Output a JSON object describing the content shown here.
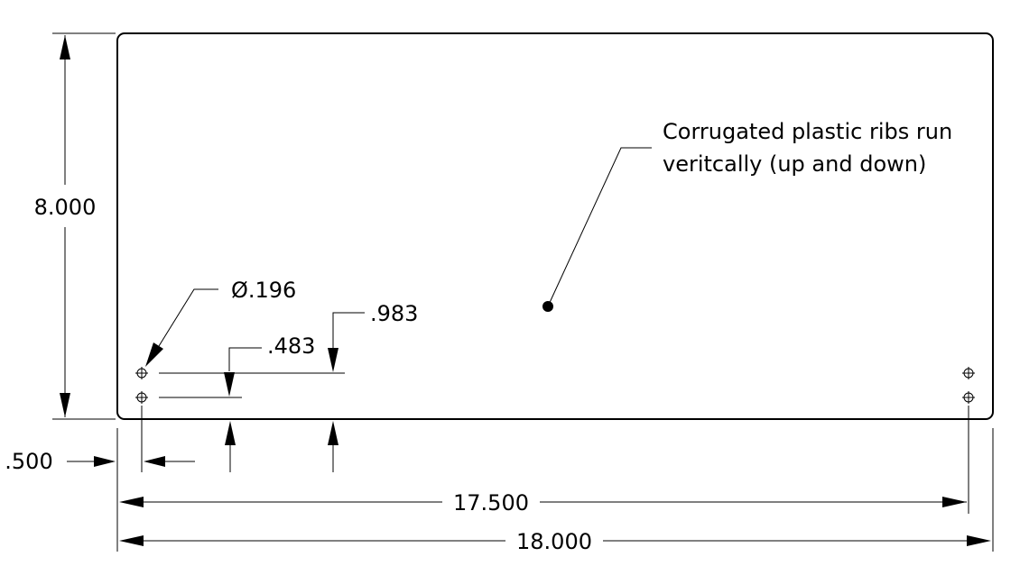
{
  "part": {
    "overall_width": "18.000",
    "overall_height": "8.000",
    "hole_spacing_width": "17.500",
    "hole_diameter": "Ø.196",
    "hole_offset_x": ".500",
    "hole_row1_offset_y": ".483",
    "hole_row2_offset_y": ".983"
  },
  "note": {
    "line1": "Corrugated plastic ribs run",
    "line2": "veritcally (up and down)"
  }
}
